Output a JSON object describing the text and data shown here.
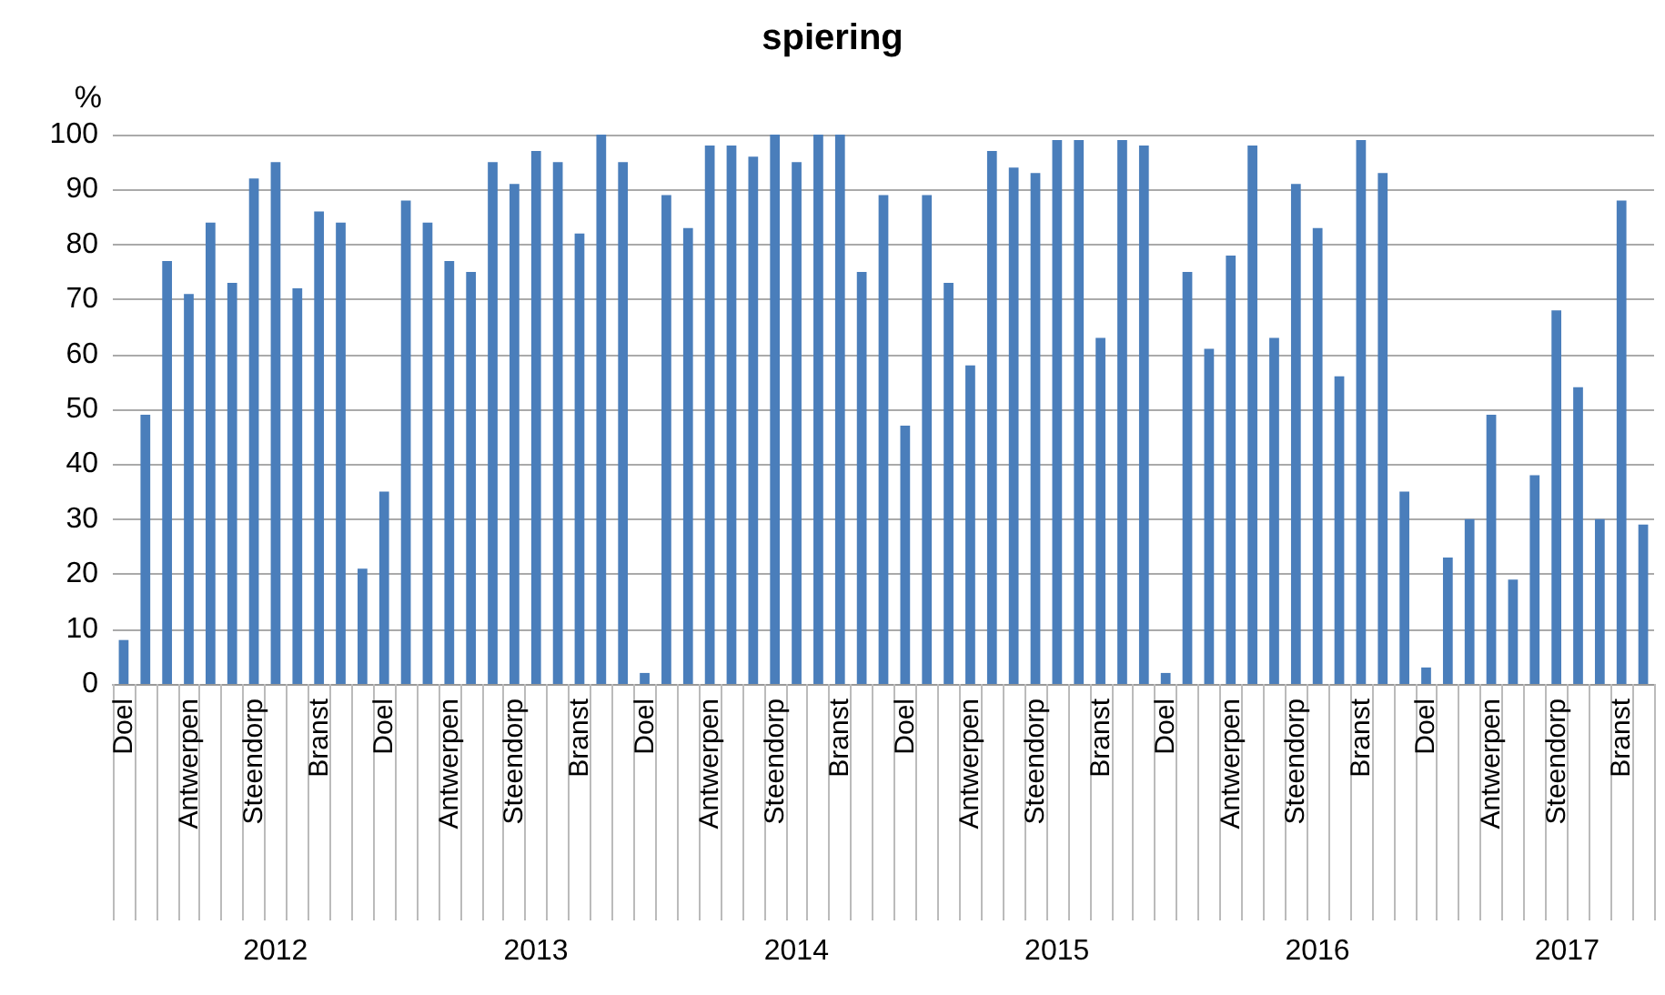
{
  "chart_data": {
    "type": "bar",
    "title": "spiering",
    "ylabel": "%",
    "categories": [
      "Doel",
      null,
      null,
      "Antwerpen",
      null,
      null,
      "Steendorp",
      null,
      null,
      "Branst",
      null,
      null,
      "Doel",
      null,
      null,
      "Antwerpen",
      null,
      null,
      "Steendorp",
      null,
      null,
      "Branst",
      null,
      null,
      "Doel",
      null,
      null,
      "Antwerpen",
      null,
      null,
      "Steendorp",
      null,
      null,
      "Branst",
      null,
      null,
      "Doel",
      null,
      null,
      "Antwerpen",
      null,
      null,
      "Steendorp",
      null,
      null,
      "Branst",
      null,
      null,
      "Doel",
      null,
      null,
      "Antwerpen",
      null,
      null,
      "Steendorp",
      null,
      null,
      "Branst",
      null,
      null,
      "Doel",
      null,
      null,
      "Antwerpen",
      null,
      null,
      "Steendorp",
      null,
      null,
      "Branst",
      null
    ],
    "values": [
      8,
      49,
      77,
      71,
      84,
      73,
      92,
      95,
      72,
      86,
      84,
      21,
      35,
      88,
      84,
      77,
      75,
      95,
      91,
      97,
      95,
      82,
      100,
      95,
      2,
      89,
      83,
      98,
      98,
      96,
      100,
      95,
      100,
      100,
      75,
      89,
      47,
      89,
      73,
      58,
      97,
      94,
      93,
      99,
      99,
      63,
      99,
      98,
      2,
      75,
      61,
      78,
      98,
      63,
      91,
      83,
      56,
      99,
      93,
      35,
      3,
      23,
      30,
      49,
      19,
      38,
      68,
      54,
      30,
      88,
      29
    ],
    "color": "#4a7ebb",
    "ylim": [
      0,
      100
    ],
    "yticks": [
      0,
      10,
      20,
      30,
      40,
      50,
      60,
      70,
      80,
      90,
      100
    ],
    "grid": "y",
    "annotations": [
      "2012",
      "2013",
      "2014",
      "2015",
      "2016",
      "2017"
    ]
  }
}
